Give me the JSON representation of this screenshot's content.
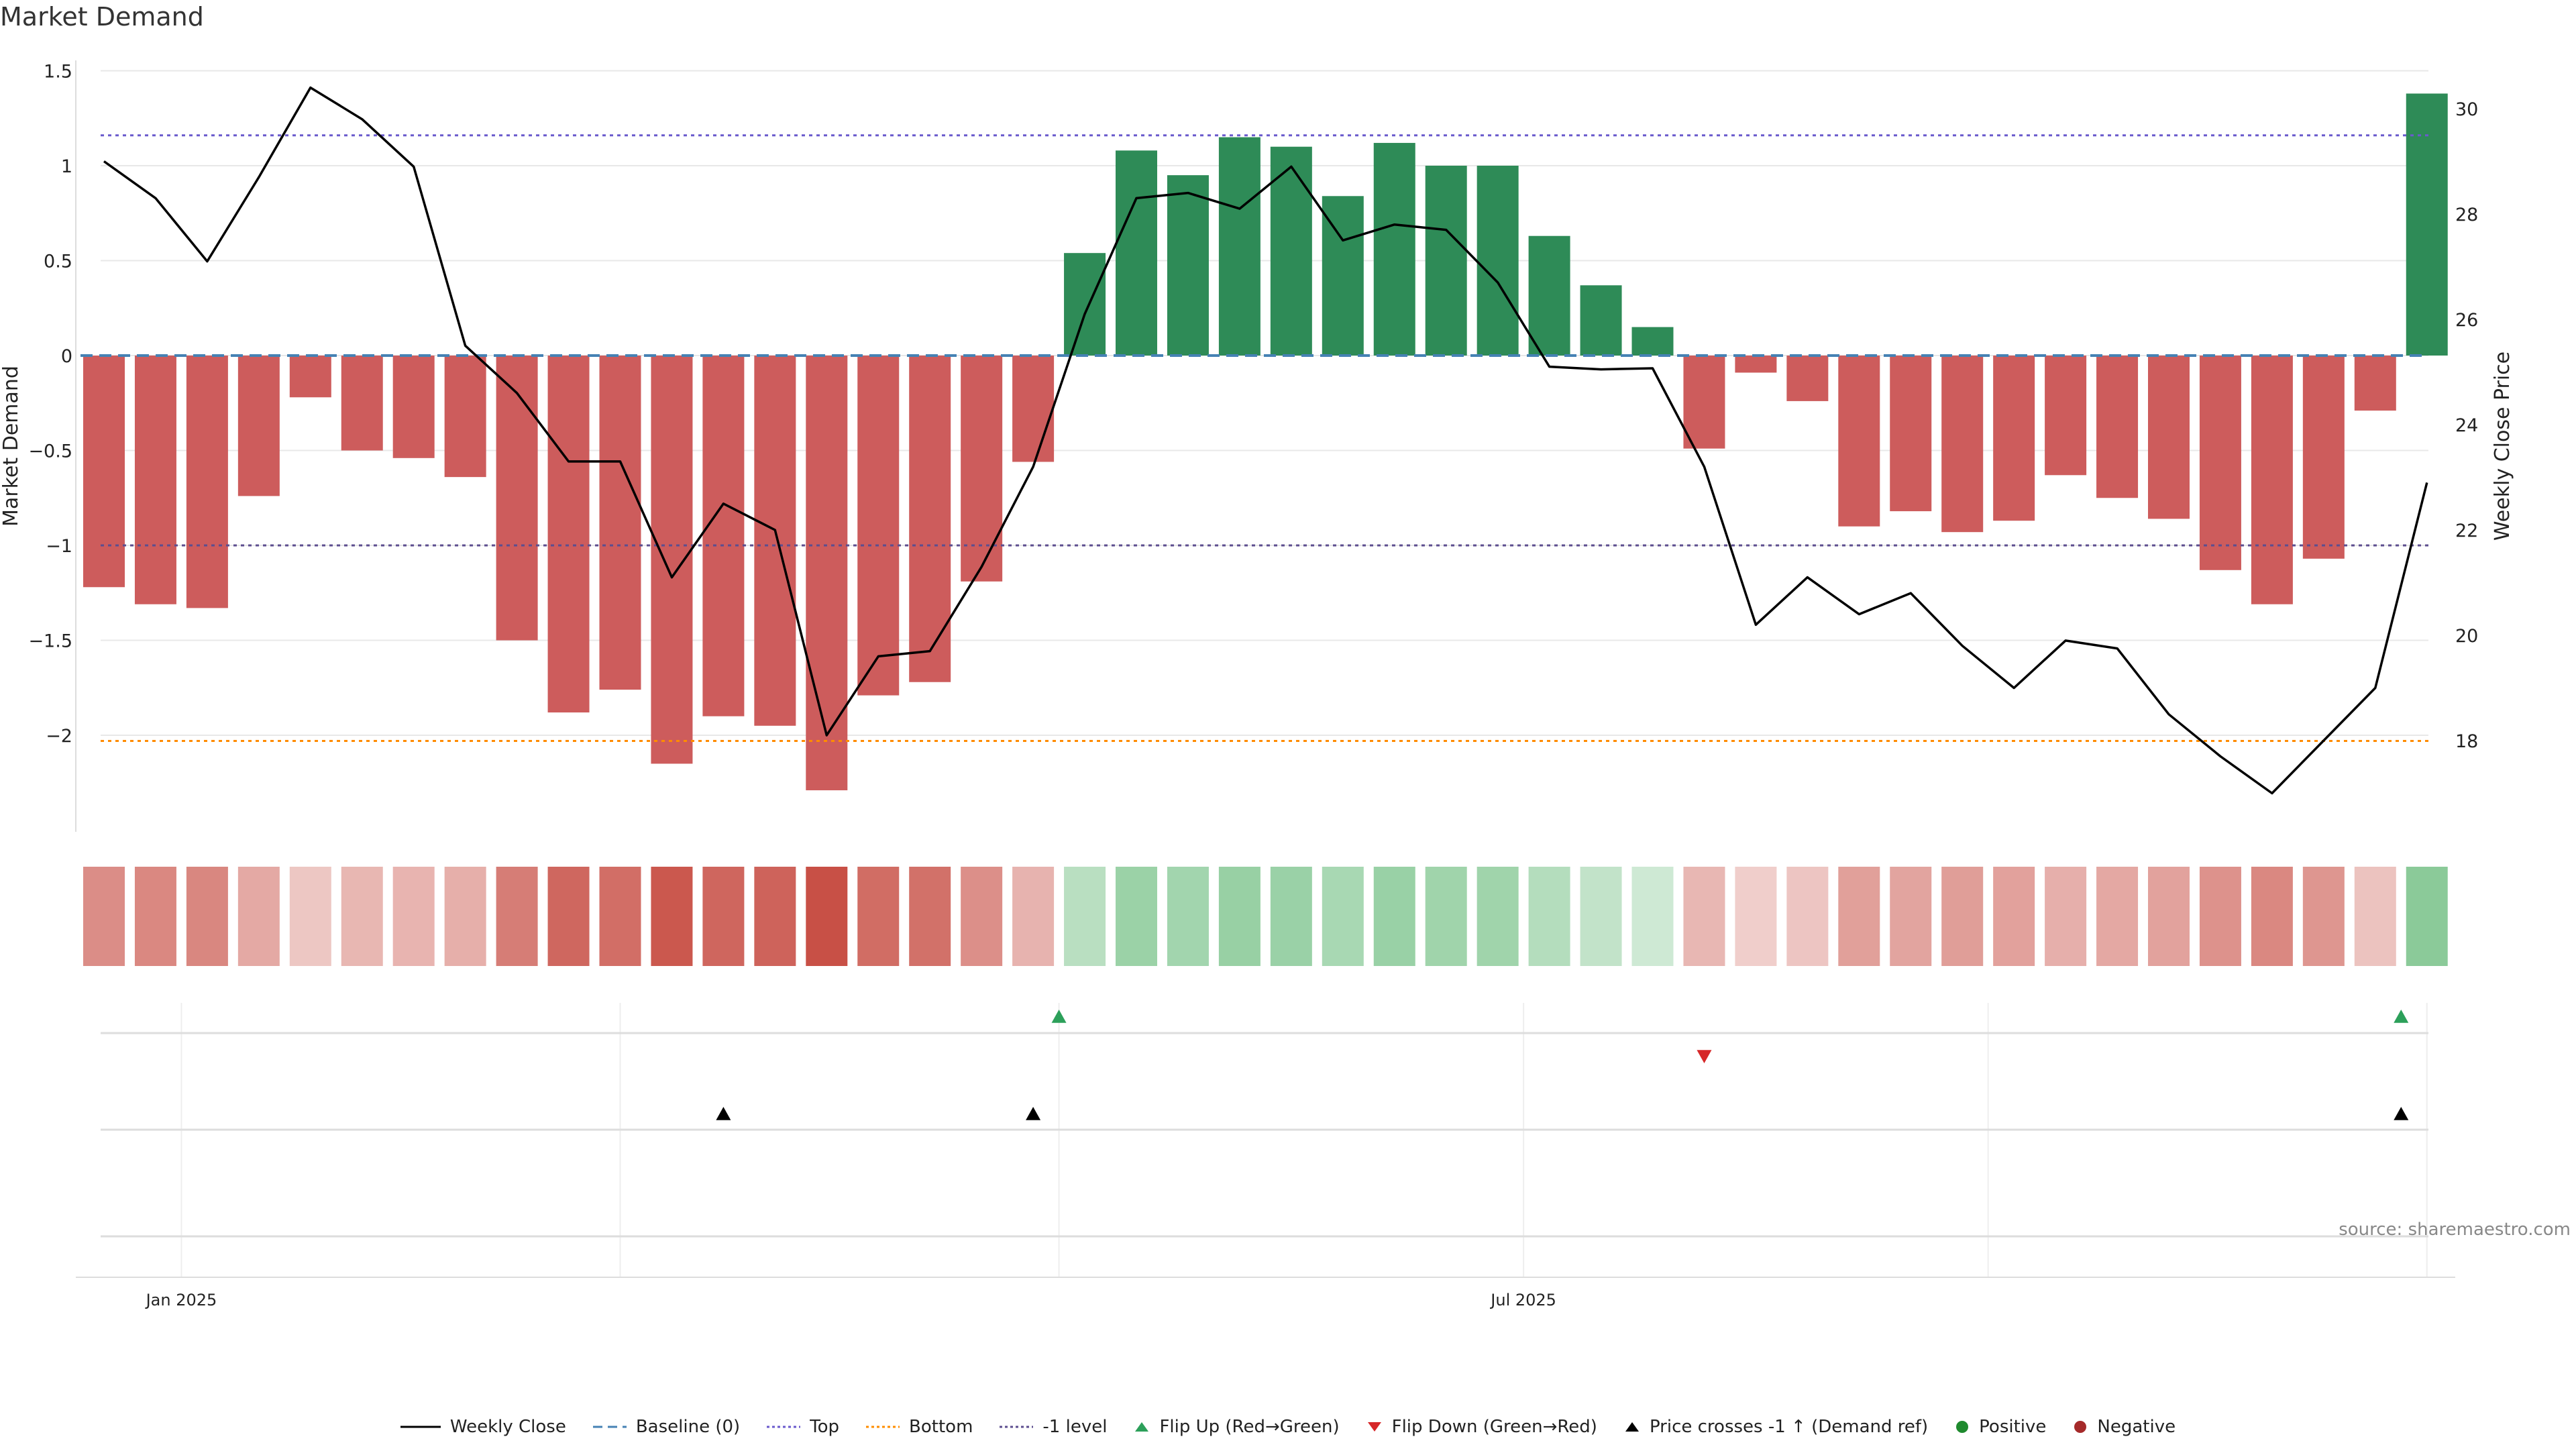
{
  "chart_data": {
    "type": "bar",
    "title": "Market Demand",
    "ylabel": "Market Demand",
    "y2label": "Weekly Close Price",
    "ylim": [
      -2.5,
      1.5
    ],
    "y2lim": [
      16.4,
      31.0
    ],
    "yticks": [
      1.5,
      1,
      0.5,
      0,
      -0.5,
      -1,
      -1.5,
      -2
    ],
    "ytick_labels": [
      "1.5",
      "1",
      "0.5",
      "0",
      "−0.5",
      "−1",
      "−1.5",
      "−2"
    ],
    "y2ticks": [
      30,
      28,
      26,
      24,
      22,
      20,
      18
    ],
    "y2tick_labels": [
      "30",
      "28",
      "26",
      "24",
      "22",
      "20",
      "18"
    ],
    "xtick_labels": [
      "Jan 2025",
      "Jul 2025"
    ],
    "xtick_index": [
      1.5,
      27.5
    ],
    "reference_lines": {
      "baseline": 0,
      "top": 1.16,
      "bottom": -2.03,
      "minus_one": -1
    },
    "series": [
      {
        "name": "Market Demand",
        "type": "bar",
        "values": [
          -1.22,
          -1.31,
          -1.33,
          -0.74,
          -0.22,
          -0.5,
          -0.54,
          -0.64,
          -1.5,
          -1.88,
          -1.76,
          -2.15,
          -1.9,
          -1.95,
          -2.29,
          -1.79,
          -1.72,
          -1.19,
          -0.56,
          0.54,
          1.08,
          0.95,
          1.15,
          1.1,
          0.84,
          1.12,
          1.0,
          1.0,
          0.63,
          0.37,
          0.15,
          -0.49,
          -0.09,
          -0.24,
          -0.9,
          -0.82,
          -0.93,
          -0.87,
          -0.63,
          -0.75,
          -0.86,
          -1.13,
          -1.31,
          -1.07,
          -0.29,
          1.38
        ]
      },
      {
        "name": "Weekly Close",
        "type": "line",
        "values": [
          29.0,
          28.3,
          27.1,
          28.7,
          30.4,
          29.8,
          28.9,
          25.5,
          24.6,
          23.3,
          23.3,
          21.1,
          22.5,
          22.0,
          18.1,
          19.6,
          19.7,
          21.3,
          23.2,
          26.1,
          28.3,
          28.4,
          28.1,
          28.9,
          27.5,
          27.8,
          27.7,
          26.7,
          25.1,
          25.05,
          25.07,
          23.2,
          20.2,
          21.1,
          20.4,
          20.8,
          19.8,
          19.0,
          19.9,
          19.75,
          18.5,
          17.7,
          17.0,
          18.0,
          19.0,
          22.9
        ]
      }
    ],
    "events": {
      "flip_up": [
        18.5,
        44.5
      ],
      "flip_down": [
        31
      ],
      "price_crosses": [
        12,
        18,
        44.5
      ]
    },
    "legend": [
      "Weekly Close",
      "Baseline (0)",
      "Top",
      "Bottom",
      "-1 level",
      "Flip Up (Red→Green)",
      "Flip Down (Green→Red)",
      "Price crosses -1 ↑ (Demand ref)",
      "Positive",
      "Negative"
    ],
    "colors": {
      "positive": "#2e8b57",
      "negative": "#cd5c5c",
      "line": "#000000",
      "baseline": "#4682b4",
      "top": "#6a5acd",
      "bottom": "#ff8c00",
      "minus_one": "#5c4e8f",
      "flip_up": "#2ca05a",
      "flip_down": "#d62728",
      "cross": "#000000",
      "heat_pos": "#5ab46e",
      "heat_neg": "#c85046",
      "grid": "#e8e8e8",
      "positive_dot": "#1f8a2e",
      "negative_dot": "#a52a2a"
    }
  },
  "source_text": "source: sharemaestro.com"
}
